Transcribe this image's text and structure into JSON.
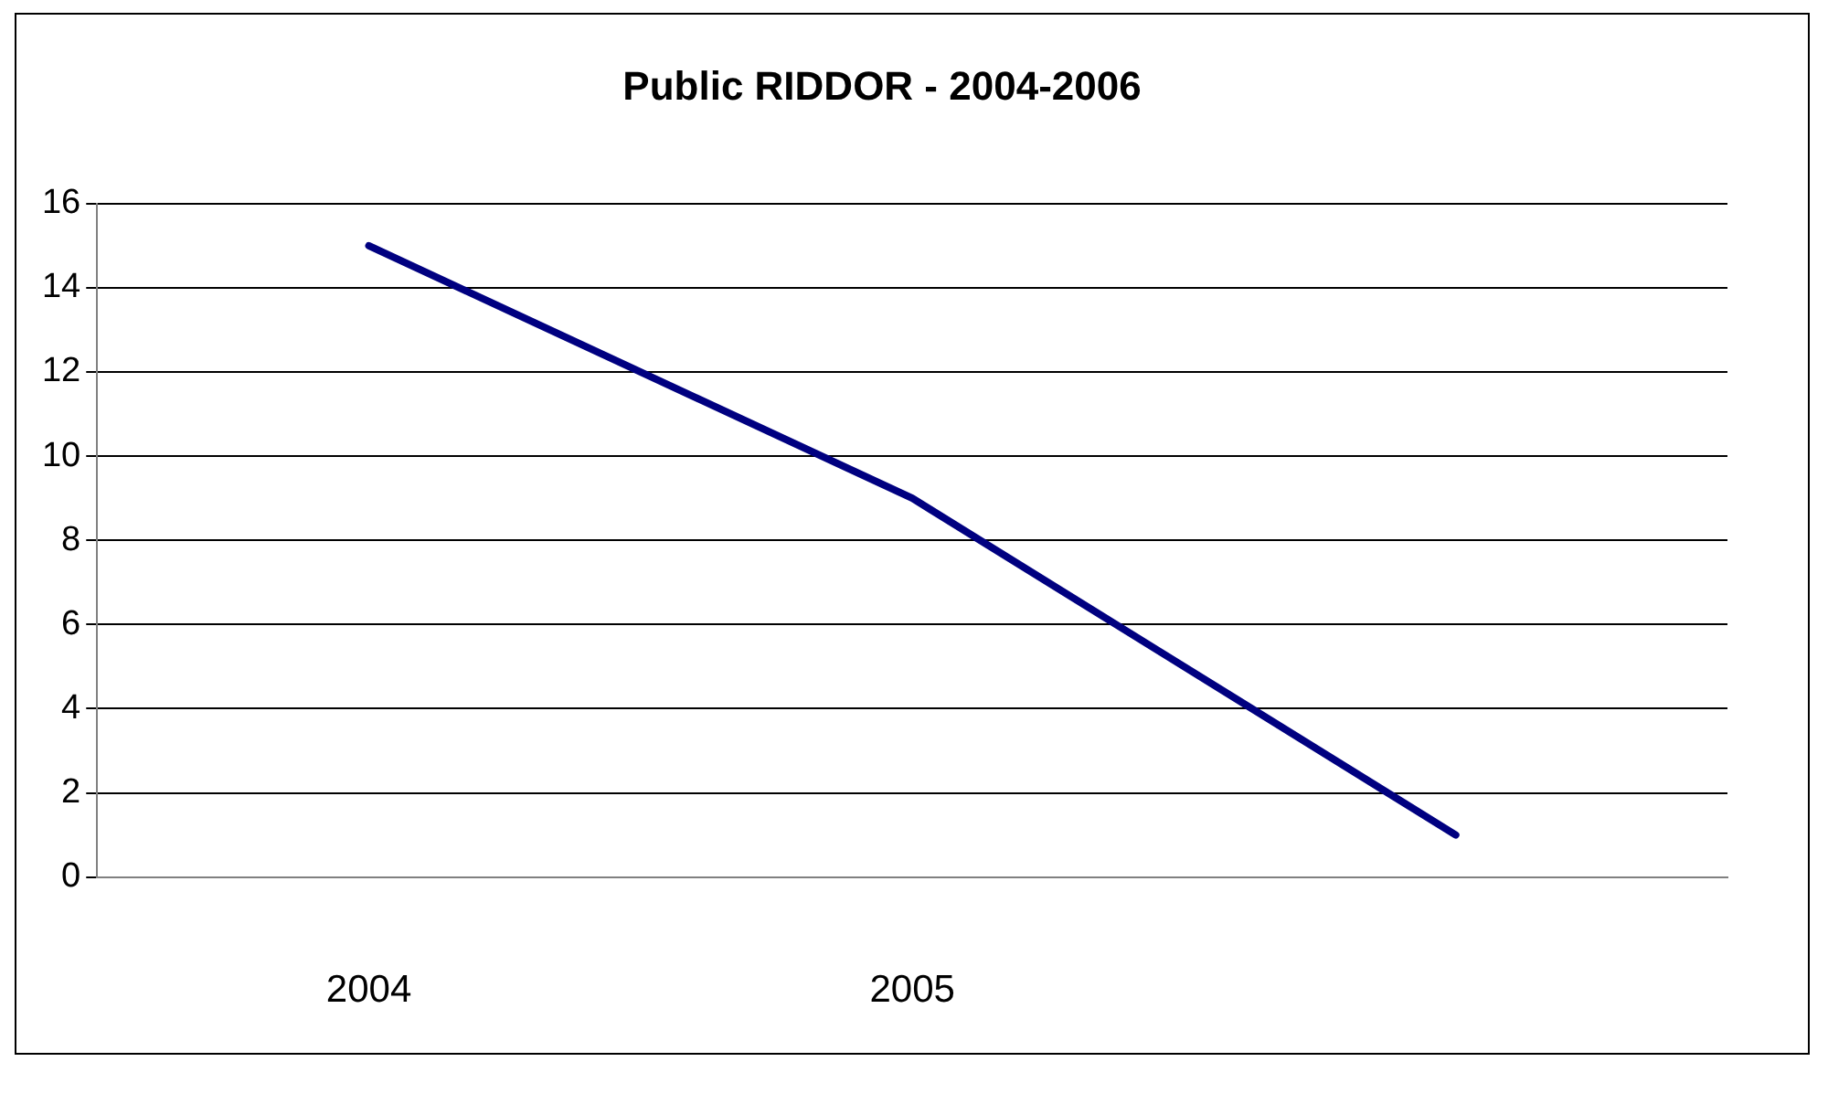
{
  "chart_data": {
    "type": "line",
    "title": "Public RIDDOR - 2004-2006",
    "categories": [
      "2004",
      "2005",
      null
    ],
    "series": [
      {
        "color": "#000080",
        "values": [
          15,
          9,
          1
        ]
      }
    ],
    "ylim": [
      0,
      16
    ],
    "yticks": [
      0,
      2,
      4,
      6,
      8,
      10,
      12,
      14,
      16
    ],
    "grid": "y",
    "legend": false,
    "marker": "none",
    "line_style": "solid"
  }
}
